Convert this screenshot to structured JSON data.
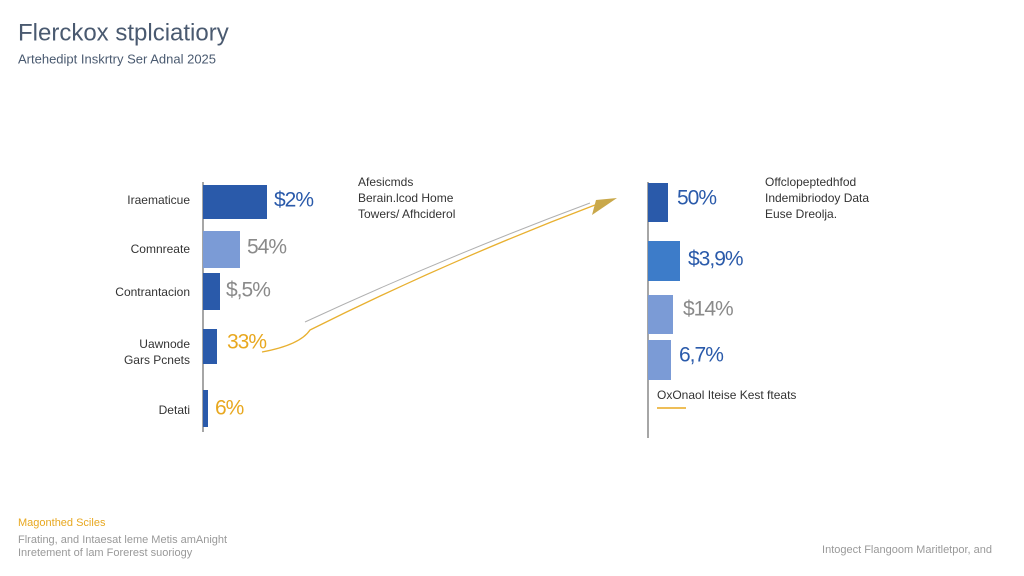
{
  "header": {
    "title": "Flerckox stplciatiory",
    "subtitle": "Artehedipt Inskrtry Ser Adnal 2025"
  },
  "left_panel": {
    "rows": [
      {
        "label": [
          "Iraematicue"
        ],
        "value_text": "$2%"
      },
      {
        "label": [
          "Comnreate"
        ],
        "value_text": "54%"
      },
      {
        "label": [
          "Contrantacion"
        ],
        "value_text": "$,5%"
      },
      {
        "label": [
          "Uawnode",
          "Gars Pcnets"
        ],
        "value_text": "33%"
      },
      {
        "label": [
          "Detati"
        ],
        "value_text": "6%"
      }
    ],
    "note": [
      "Afesicmds",
      "Berain.lcod Home",
      "Towers/ Afhciderol"
    ]
  },
  "right_panel": {
    "rows": [
      {
        "value_text": "50%"
      },
      {
        "value_text": "$3,9%"
      },
      {
        "value_text": "$14%"
      },
      {
        "value_text": "6,7%"
      }
    ],
    "note": [
      "Offclopeptedhfod",
      "Indemibriodoy Data",
      "Euse Dreolja."
    ],
    "footnote": "OxOnaol Iteise Kest fteats"
  },
  "footer": {
    "heading": "Magonthed Sciles",
    "lines": [
      "Flrating, and Intaesat leme Metis amAnight",
      "Inretement of lam Forerest suoriogy"
    ],
    "credit": "Intogect Flangoom Maritletpor, and"
  }
}
